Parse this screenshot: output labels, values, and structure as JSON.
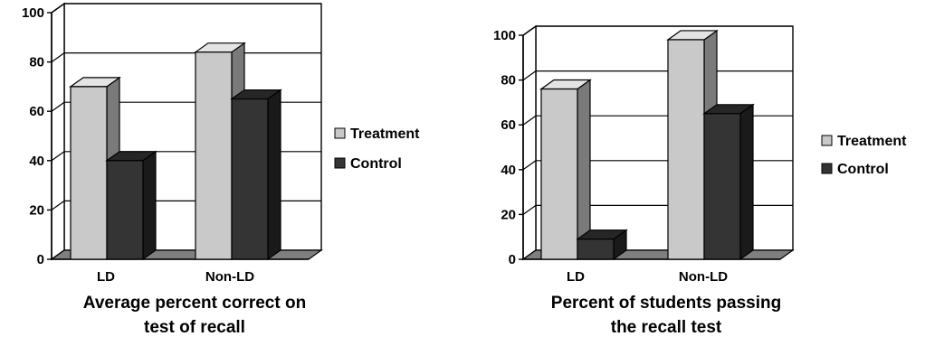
{
  "chart_data": [
    {
      "type": "bar",
      "categories": [
        "LD",
        "Non-LD"
      ],
      "series": [
        {
          "name": "Treatment",
          "values": [
            70,
            84
          ]
        },
        {
          "name": "Control",
          "values": [
            40,
            65
          ]
        }
      ],
      "title_lines": [
        "Average percent correct on",
        "test of recall"
      ],
      "yticks": [
        "0",
        "20",
        "40",
        "60",
        "80",
        "100"
      ],
      "ylim": [
        0,
        100
      ],
      "grid": true,
      "legend": "right"
    },
    {
      "type": "bar",
      "categories": [
        "LD",
        "Non-LD"
      ],
      "series": [
        {
          "name": "Treatment",
          "values": [
            76,
            98
          ]
        },
        {
          "name": "Control",
          "values": [
            9,
            65
          ]
        }
      ],
      "title_lines": [
        "Percent of students passing",
        "the recall test"
      ],
      "yticks": [
        "0",
        "20",
        "40",
        "60",
        "80",
        "100"
      ],
      "ylim": [
        0,
        100
      ],
      "grid": true,
      "legend": "right"
    }
  ],
  "colors": {
    "treatment_front": "#c9c9c9",
    "treatment_side": "#7a7a7a",
    "treatment_top": "#e4e4e4",
    "control_front": "#343434",
    "control_side": "#1a1a1a",
    "control_top": "#262626",
    "floor": "#7f7f7f",
    "wall": "#c0c0c0"
  }
}
